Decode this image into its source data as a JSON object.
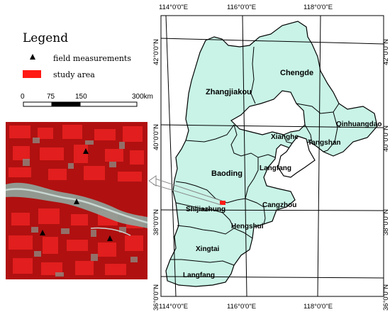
{
  "legend": {
    "title": "Legend",
    "items": [
      {
        "symbol": "black-triangle",
        "label": "field measurements"
      },
      {
        "symbol": "red-rectangle",
        "label": "study area",
        "color": "#ff1a14"
      }
    ]
  },
  "scalebar": {
    "ticks": [
      "0",
      "75",
      "150",
      "300km"
    ]
  },
  "map": {
    "longitude_labels": [
      "114°0'0\"E",
      "116°0'0\"E",
      "118°0'0\"E"
    ],
    "latitude_labels": [
      "42°0'0\"N",
      "40°0'0\"N",
      "38°0'0\"N",
      "36°0'0\"N"
    ],
    "regions": [
      "Zhangjiakou",
      "Chengde",
      "Qinhuangdao",
      "Xianghe",
      "Tangshan",
      "Langfang",
      "Baoding",
      "Shijiazhung",
      "Cangzhou",
      "Hengshui",
      "Xingtai",
      "Langfang"
    ],
    "land_color": "#c8f3e6",
    "border_color": "#000000",
    "study_area_color": "#ff1a14"
  },
  "inset": {
    "image": "false-color satellite image of study area",
    "field_measurement_count": 4
  }
}
